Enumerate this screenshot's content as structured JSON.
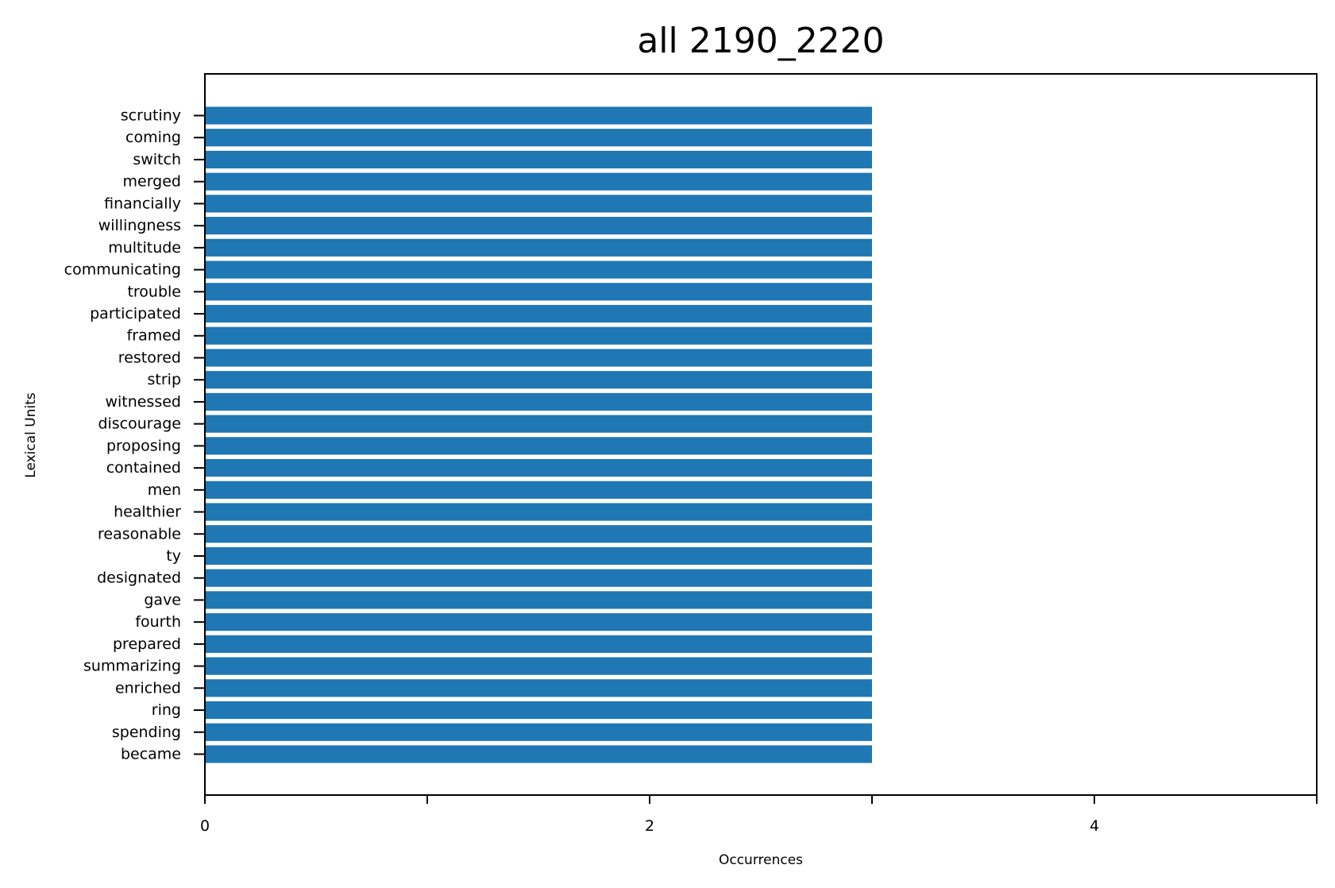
{
  "chart_data": {
    "type": "bar",
    "orientation": "horizontal",
    "title": "all 2190_2220",
    "xlabel": "Occurrences",
    "ylabel": "Lexical Units",
    "xlim": [
      0,
      5
    ],
    "xticks": [
      0,
      1,
      2,
      3,
      4,
      5
    ],
    "xtick_labels": [
      "0",
      "",
      "2",
      "",
      "4",
      ""
    ],
    "grid": false,
    "bar_color": "#1f77b4",
    "categories": [
      "scrutiny",
      "coming",
      "switch",
      "merged",
      "financially",
      "willingness",
      "multitude",
      "communicating",
      "trouble",
      "participated",
      "framed",
      "restored",
      "strip",
      "witnessed",
      "discourage",
      "proposing",
      "contained",
      "men",
      "healthier",
      "reasonable",
      "ty",
      "designated",
      "gave",
      "fourth",
      "prepared",
      "summarizing",
      "enriched",
      "ring",
      "spending",
      "became"
    ],
    "values": [
      3,
      3,
      3,
      3,
      3,
      3,
      3,
      3,
      3,
      3,
      3,
      3,
      3,
      3,
      3,
      3,
      3,
      3,
      3,
      3,
      3,
      3,
      3,
      3,
      3,
      3,
      3,
      3,
      3,
      3
    ]
  }
}
